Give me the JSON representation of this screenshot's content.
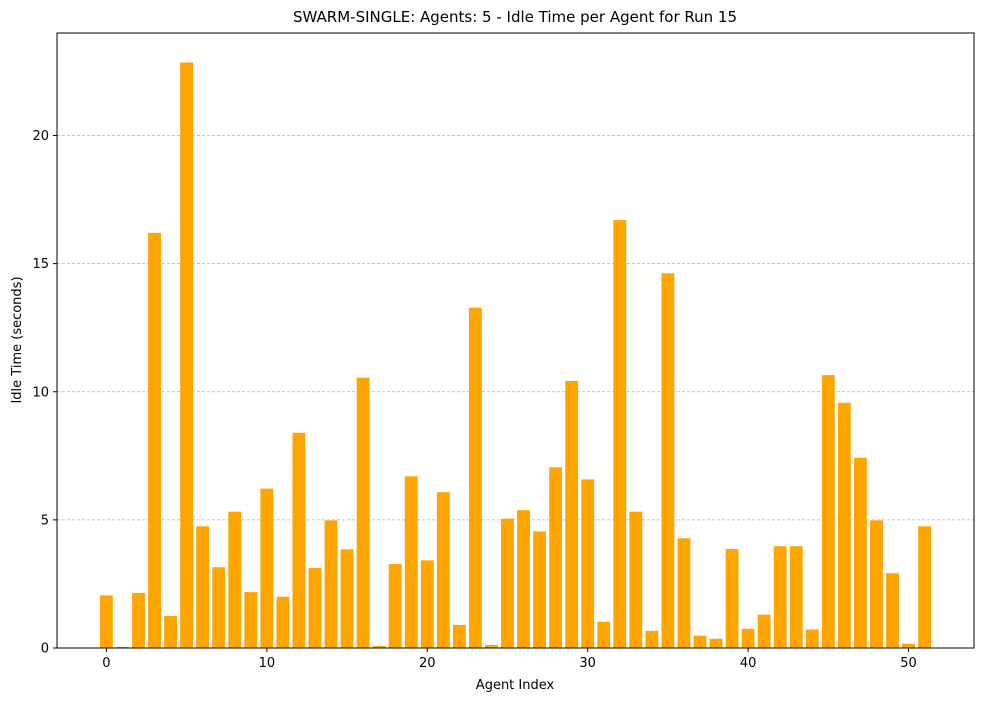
{
  "chart_data": {
    "type": "bar",
    "title": "SWARM-SINGLE: Agents: 5 - Idle Time per Agent for Run 15",
    "xlabel": "Agent Index",
    "ylabel": "Idle Time (seconds)",
    "x": [
      0,
      1,
      2,
      3,
      4,
      5,
      6,
      7,
      8,
      9,
      10,
      11,
      12,
      13,
      14,
      15,
      16,
      17,
      18,
      19,
      20,
      21,
      22,
      23,
      24,
      25,
      26,
      27,
      28,
      29,
      30,
      31,
      32,
      33,
      34,
      35,
      36,
      37,
      38,
      39,
      40,
      41,
      42,
      43,
      44,
      45,
      46,
      47,
      48,
      49,
      50,
      51
    ],
    "values": [
      2.05,
      0.04,
      2.15,
      16.2,
      1.25,
      22.85,
      4.75,
      3.15,
      5.32,
      2.18,
      6.22,
      2.0,
      8.4,
      3.12,
      4.98,
      3.85,
      10.55,
      0.08,
      3.28,
      6.7,
      3.42,
      6.08,
      0.9,
      13.28,
      0.12,
      5.05,
      5.38,
      4.55,
      7.05,
      10.42,
      6.58,
      1.02,
      16.7,
      5.32,
      0.67,
      14.62,
      4.28,
      0.48,
      0.36,
      3.86,
      0.75,
      1.3,
      3.97,
      3.97,
      0.72,
      10.65,
      9.57,
      7.42,
      4.98,
      2.92,
      0.17,
      4.75
    ],
    "xlim": [
      -3.08,
      54.08
    ],
    "ylim": [
      0,
      24
    ],
    "xticks": [
      "0",
      "10",
      "20",
      "30",
      "40",
      "50"
    ],
    "yticks": [
      "0",
      "5",
      "10",
      "15",
      "20"
    ],
    "bar_color": "#FFA500",
    "grid": "y-dashed"
  }
}
